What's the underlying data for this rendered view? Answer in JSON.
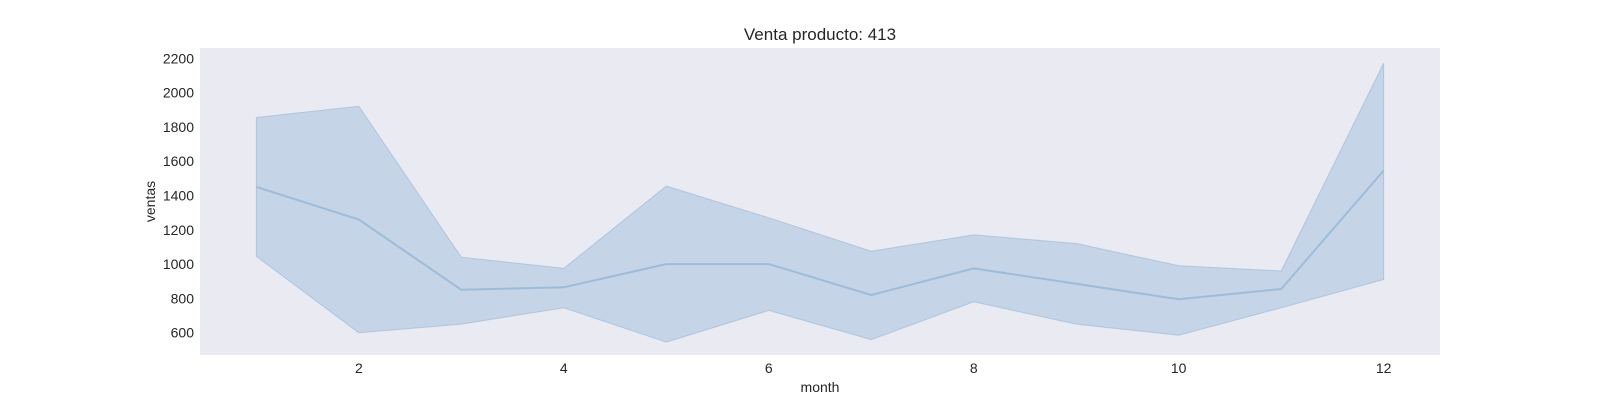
{
  "chart_data": {
    "type": "line",
    "title": "Venta producto: 413",
    "xlabel": "month",
    "ylabel": "ventas",
    "x": [
      1,
      2,
      3,
      4,
      5,
      6,
      7,
      8,
      9,
      10,
      11,
      12
    ],
    "series": [
      {
        "values": [
          1450,
          1260,
          850,
          865,
          1000,
          1000,
          820,
          975,
          885,
          795,
          855,
          1545
        ],
        "ci_upper": [
          1855,
          1920,
          1040,
          975,
          1455,
          1270,
          1075,
          1170,
          1120,
          990,
          960,
          2170
        ],
        "ci_lower": [
          1045,
          600,
          650,
          745,
          545,
          730,
          560,
          780,
          650,
          585,
          745,
          910
        ]
      }
    ],
    "xlim": [
      0.45,
      12.55
    ],
    "ylim": [
      470,
      2260
    ],
    "x_ticks": [
      2,
      4,
      6,
      8,
      10,
      12
    ],
    "y_ticks": [
      600,
      800,
      1000,
      1200,
      1400,
      1600,
      1800,
      2000,
      2200
    ],
    "grid": false,
    "colors": {
      "plot_background": "#eaeaf2",
      "line": "#9ebcda",
      "band": "#b0c8de"
    }
  }
}
